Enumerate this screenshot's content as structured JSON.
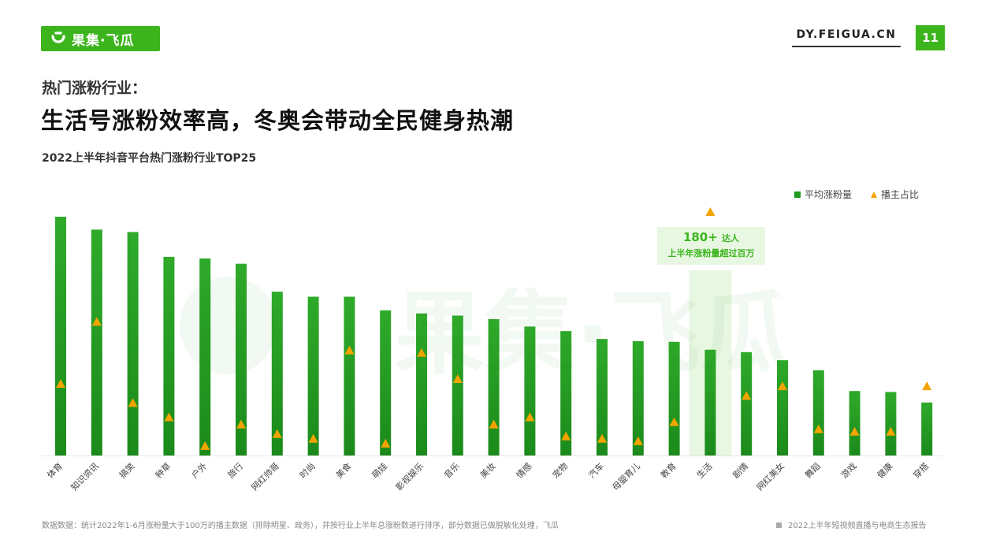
{
  "header": {
    "logo_text": "果集·飞瓜",
    "site": "DY.FEIGUA.CN",
    "page_number": "11"
  },
  "subtitle": "热门涨粉行业：",
  "title": "生活号涨粉效率高，冬奥会带动全民健身热潮",
  "callout": {
    "line1_num": "180+",
    "line1_text": "达人",
    "line2": "上半年涨粉量超过百万"
  },
  "footer": {
    "source": "数据数据：统计2022年1-6月涨粉量大于100万的播主数据（排除明星、政务），并按行业上半年总涨粉数进行排序，部分数据已做脱敏化处理，飞瓜",
    "report": "2022上半年短视频直播与电商生态报告"
  },
  "colors": {
    "brand": "#3cb51d",
    "bar_dark": "#1b8a1b",
    "bar_light": "#2faa2a",
    "marker": "#f5a400",
    "highlight_bg": "#e8f7e2"
  },
  "chart_data": {
    "type": "bar",
    "title": "2022上半年抖音平台热门涨粉行业TOP25",
    "legend_position": "top-right",
    "highlight_category": "生活",
    "categories": [
      "体育",
      "知识资讯",
      "搞笑",
      "种草",
      "户外",
      "旅行",
      "网红帅哥",
      "时尚",
      "美食",
      "萌娃",
      "影视娱乐",
      "音乐",
      "美妆",
      "情感",
      "宠物",
      "汽车",
      "母婴育儿",
      "教育",
      "生活",
      "剧情",
      "网红美女",
      "舞蹈",
      "游戏",
      "健康",
      "穿搭"
    ],
    "series": [
      {
        "name": "平均涨粉量",
        "type": "bar",
        "values": [
          100,
          94.6,
          93.6,
          83.2,
          82.5,
          80.3,
          68.6,
          66.5,
          66.5,
          60.8,
          59.5,
          58.6,
          57.1,
          54.0,
          52.1,
          48.8,
          47.9,
          47.6,
          44.3,
          43.3,
          39.9,
          35.7,
          27.0,
          26.6,
          22.2
        ]
      },
      {
        "name": "播主占比",
        "type": "marker",
        "values": [
          30,
          56,
          22,
          16,
          4,
          13,
          9,
          7,
          44,
          5,
          43,
          32,
          13,
          16,
          8,
          7,
          6,
          14,
          102,
          25,
          29,
          11,
          10,
          10,
          29
        ]
      }
    ],
    "ylim": [
      0,
      100
    ]
  }
}
